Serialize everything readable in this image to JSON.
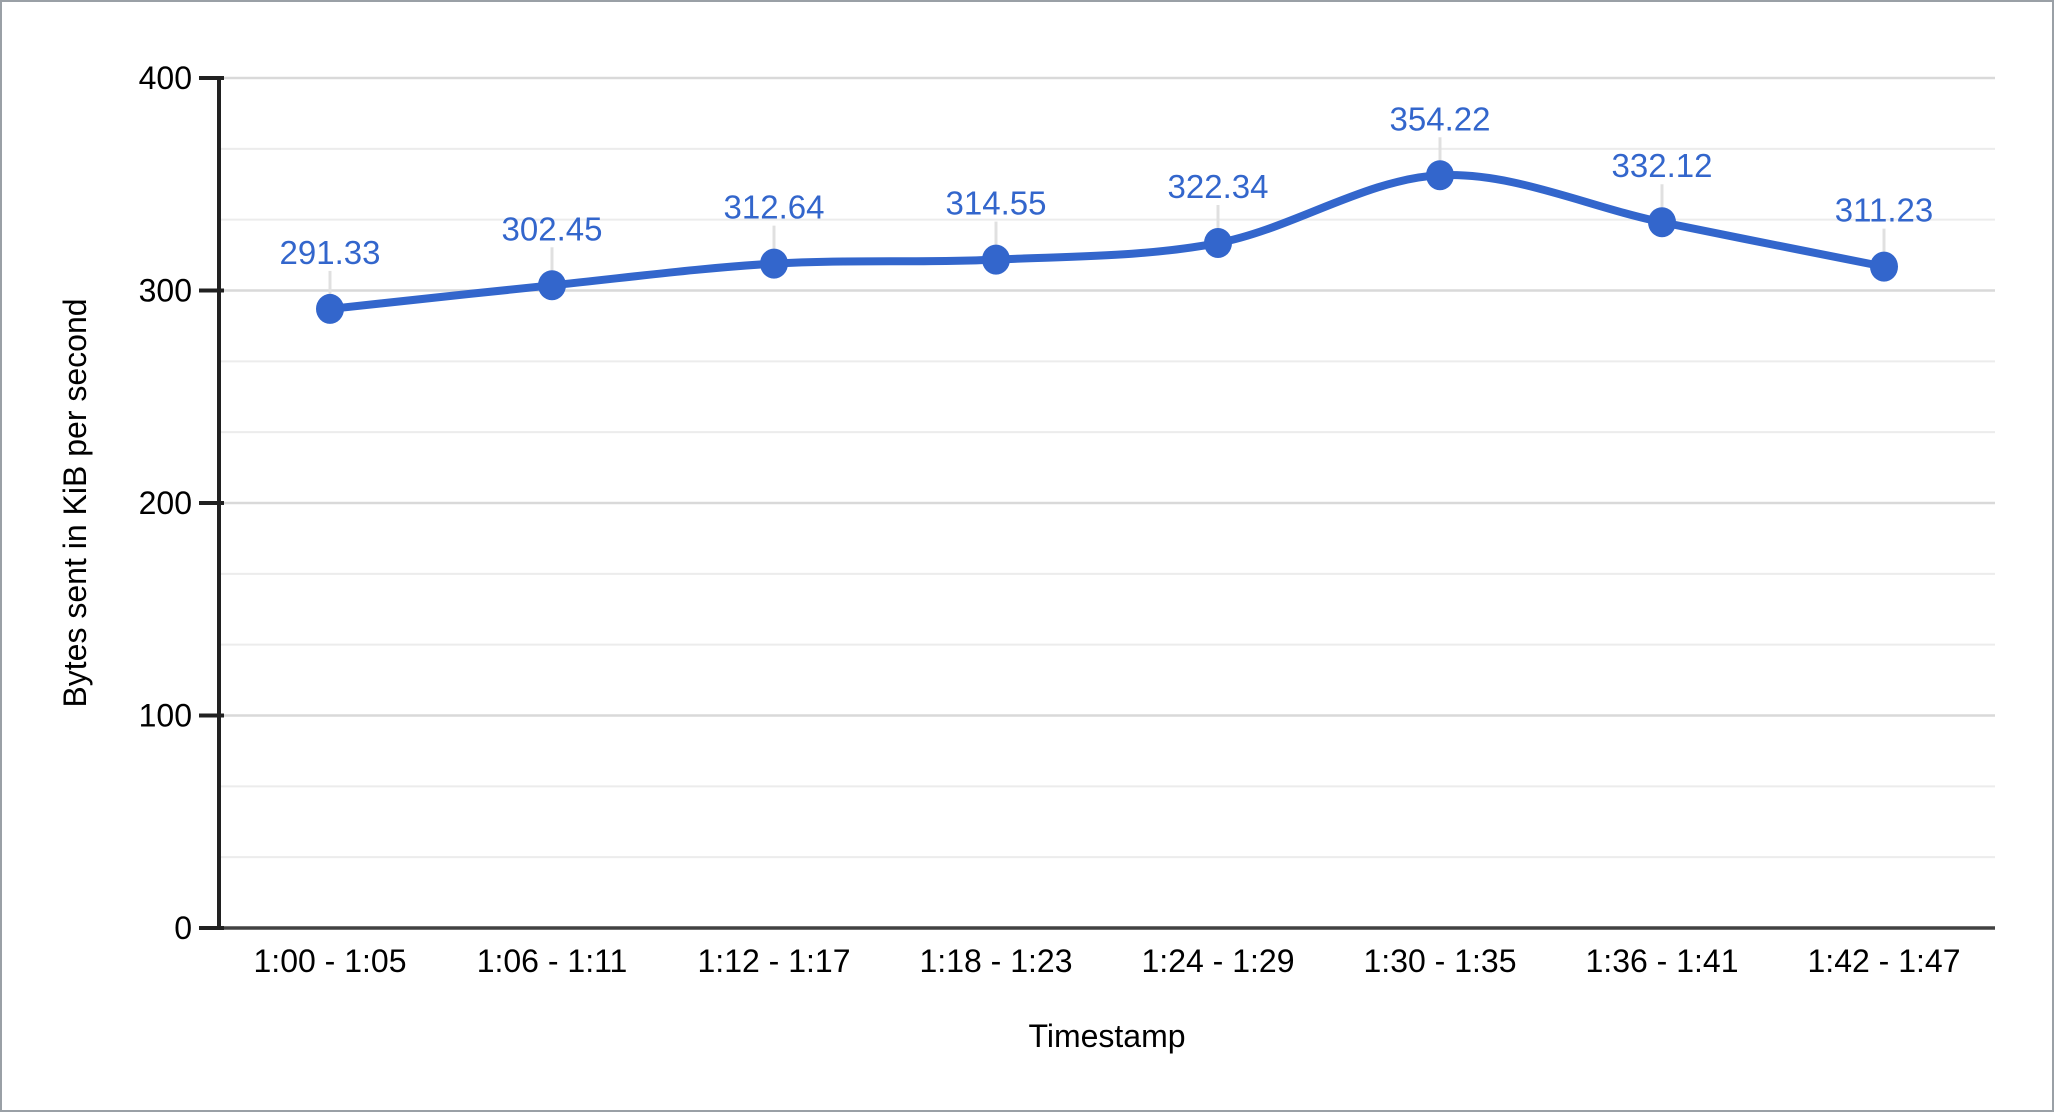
{
  "chart_data": {
    "type": "line",
    "smooth": true,
    "categories": [
      "1:00 - 1:05",
      "1:06 - 1:11",
      "1:12 - 1:17",
      "1:18 - 1:23",
      "1:24 - 1:29",
      "1:30 - 1:35",
      "1:36 - 1:41",
      "1:42 - 1:47"
    ],
    "series": [
      {
        "values": [
          291.33,
          302.45,
          312.64,
          314.55,
          322.34,
          354.22,
          332.12,
          311.23
        ],
        "labels": [
          "291.33",
          "302.45",
          "312.64",
          "314.55",
          "322.34",
          "354.22",
          "332.12",
          "311.23"
        ],
        "color": "#3366CC"
      }
    ],
    "title": "",
    "xlabel": "Timestamp",
    "ylabel": "Bytes sent in KiB per second",
    "ylim": [
      0,
      400
    ],
    "yticks": [
      0,
      100,
      200,
      300,
      400
    ],
    "ytick_labels": [
      "0",
      "100",
      "200",
      "300",
      "400"
    ],
    "minor_gridlines_between_majors": 2,
    "grid": true,
    "legend": "none",
    "point_markers": true,
    "data_labels_shown": true
  },
  "styles": {
    "series_color": "#3366CC",
    "data_label_color": "#3366CC",
    "connector_color": "#E0E0E0",
    "major_gridline_color": "#D9D9D9",
    "minor_gridline_color": "#ECECEC",
    "y_axis_line_color": "#212121",
    "x_axis_line_color": "#424242",
    "tick_color": "#212121",
    "axis_text_color": "#000000",
    "background_color": "#FFFFFF",
    "border_color": "#9AA0A6"
  }
}
